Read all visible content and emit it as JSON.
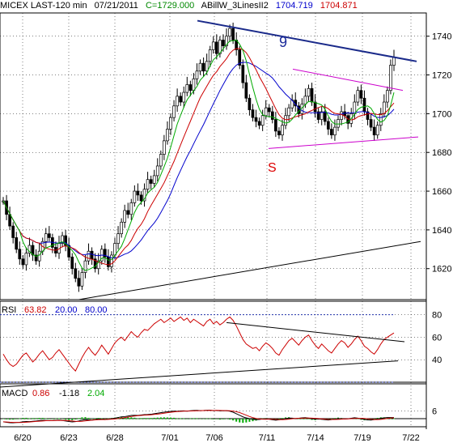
{
  "chart_data": {
    "type": "candlestick",
    "header": {
      "symbol": "MICEX LAST-120 min",
      "date": "07/21/2011",
      "close_label": "C=1729.000",
      "study": "ABillW_3LinesII2",
      "study_val1": "1704.719",
      "study_val2": "1704.871"
    },
    "dates": [
      "6/20",
      "6/23",
      "6/28",
      "7/01",
      "7/06",
      "7/11",
      "7/14",
      "7/19",
      "7/22"
    ],
    "price_axis": {
      "range": [
        1604,
        1752
      ],
      "ticks": [
        1620,
        1640,
        1660,
        1680,
        1700,
        1720,
        1740
      ]
    },
    "rsi": {
      "label": "RSI",
      "value": "63.82",
      "levels": "20.00",
      "level_hi": "80.00",
      "ticks": [
        40,
        60,
        80
      ],
      "range": [
        20,
        92
      ]
    },
    "macd": {
      "label": "MACD",
      "value1": "0.86",
      "value2": "-1.18",
      "value3": "2.04",
      "ticks": [
        6
      ]
    },
    "annotations": [
      {
        "text": "9",
        "color": "#1a2a9a"
      },
      {
        "text": "S",
        "color": "#dd0000"
      }
    ],
    "colors": {
      "price": "#000000",
      "ma_fast": "#00aa00",
      "ma_mid": "#cc0000",
      "ma_slow": "#0000cc",
      "trend_blue": "#1a2a8a",
      "channel": "#cc00cc",
      "rsi_line": "#cc0000",
      "macd_hist": "#00aa00",
      "grid": "#000000",
      "header_close": "#008800",
      "header_val1": "#0000cc",
      "header_val2": "#cc0000"
    },
    "closes": [
      1655,
      1648,
      1642,
      1636,
      1630,
      1625,
      1622,
      1628,
      1632,
      1627,
      1624,
      1629,
      1634,
      1638,
      1636,
      1631,
      1628,
      1633,
      1637,
      1632,
      1626,
      1620,
      1615,
      1611,
      1618,
      1624,
      1629,
      1625,
      1620,
      1624,
      1630,
      1626,
      1621,
      1627,
      1633,
      1638,
      1644,
      1650,
      1648,
      1654,
      1660,
      1658,
      1655,
      1661,
      1666,
      1664,
      1668,
      1673,
      1679,
      1686,
      1692,
      1698,
      1704,
      1709,
      1706,
      1711,
      1715,
      1712,
      1718,
      1722,
      1726,
      1722,
      1727,
      1733,
      1737,
      1731,
      1738,
      1735,
      1740,
      1744,
      1738,
      1733,
      1725,
      1716,
      1708,
      1702,
      1698,
      1696,
      1694,
      1699,
      1703,
      1701,
      1697,
      1691,
      1689,
      1694,
      1699,
      1703,
      1707,
      1704,
      1700,
      1705,
      1709,
      1713,
      1706,
      1701,
      1697,
      1701,
      1696,
      1692,
      1689,
      1693,
      1697,
      1701,
      1699,
      1695,
      1700,
      1706,
      1712,
      1708,
      1701,
      1697,
      1693,
      1689,
      1694,
      1700,
      1706,
      1712,
      1725,
      1729
    ],
    "rsi_values": [
      45,
      40,
      36,
      34,
      36,
      40,
      44,
      46,
      42,
      38,
      41,
      45,
      48,
      44,
      40,
      42,
      46,
      49,
      45,
      41,
      37,
      33,
      30,
      36,
      42,
      47,
      51,
      47,
      44,
      48,
      53,
      49,
      45,
      50,
      55,
      58,
      60,
      57,
      61,
      65,
      62,
      60,
      64,
      67,
      66,
      69,
      72,
      74,
      76,
      73,
      75,
      77,
      74,
      76,
      78,
      75,
      77,
      73,
      76,
      74,
      72,
      70,
      74,
      76,
      72,
      74,
      71,
      73,
      76,
      78,
      75,
      70,
      64,
      58,
      54,
      52,
      50,
      51,
      48,
      52,
      55,
      53,
      50,
      46,
      44,
      49,
      53,
      57,
      59,
      56,
      53,
      57,
      60,
      62,
      57,
      53,
      50,
      54,
      51,
      48,
      46,
      50,
      54,
      57,
      55,
      51,
      54,
      58,
      61,
      57,
      52,
      50,
      47,
      45,
      49,
      54,
      58,
      60,
      62,
      63.82
    ],
    "macd_values": [
      -2.4,
      -2.8,
      -3.1,
      -3.2,
      -3.0,
      -2.8,
      -2.4,
      -2.2,
      -2.3,
      -2.0,
      -1.8,
      -1.5,
      -1.3,
      -1.4,
      -1.6,
      -1.5,
      -1.3,
      -1.2,
      -1.4,
      -1.8,
      -2.2,
      -2.5,
      -2.3,
      -1.8,
      -1.2,
      -0.8,
      -0.9,
      -1.1,
      -0.8,
      -0.4,
      -0.5,
      -0.7,
      -0.4,
      0.0,
      0.4,
      0.9,
      1.4,
      1.6,
      2.0,
      2.5,
      2.6,
      2.5,
      2.8,
      3.1,
      3.2,
      3.4,
      3.8,
      4.2,
      4.6,
      5.0,
      5.3,
      5.6,
      5.8,
      5.7,
      5.9,
      6.0,
      5.8,
      6.1,
      6.3,
      6.4,
      6.2,
      6.3,
      6.5,
      6.6,
      6.2,
      6.3,
      6.0,
      6.1,
      6.2,
      5.8,
      5.0,
      3.8,
      2.6,
      1.4,
      0.6,
      0.0,
      -0.5,
      -0.8,
      -0.6,
      -0.2,
      -0.1,
      -0.4,
      -0.9,
      -1.2,
      -0.9,
      -0.4,
      0.1,
      0.5,
      0.4,
      0.1,
      0.3,
      0.6,
      0.8,
      0.4,
      -0.1,
      -0.4,
      -0.2,
      -0.5,
      -0.8,
      -1.0,
      -0.7,
      -0.3,
      0.1,
      0.0,
      -0.3,
      -0.1,
      0.3,
      0.7,
      0.4,
      -0.2,
      -0.6,
      -0.9,
      -1.1,
      -0.7,
      -0.2,
      0.3,
      0.6,
      0.86,
      0.86,
      0.86
    ]
  }
}
